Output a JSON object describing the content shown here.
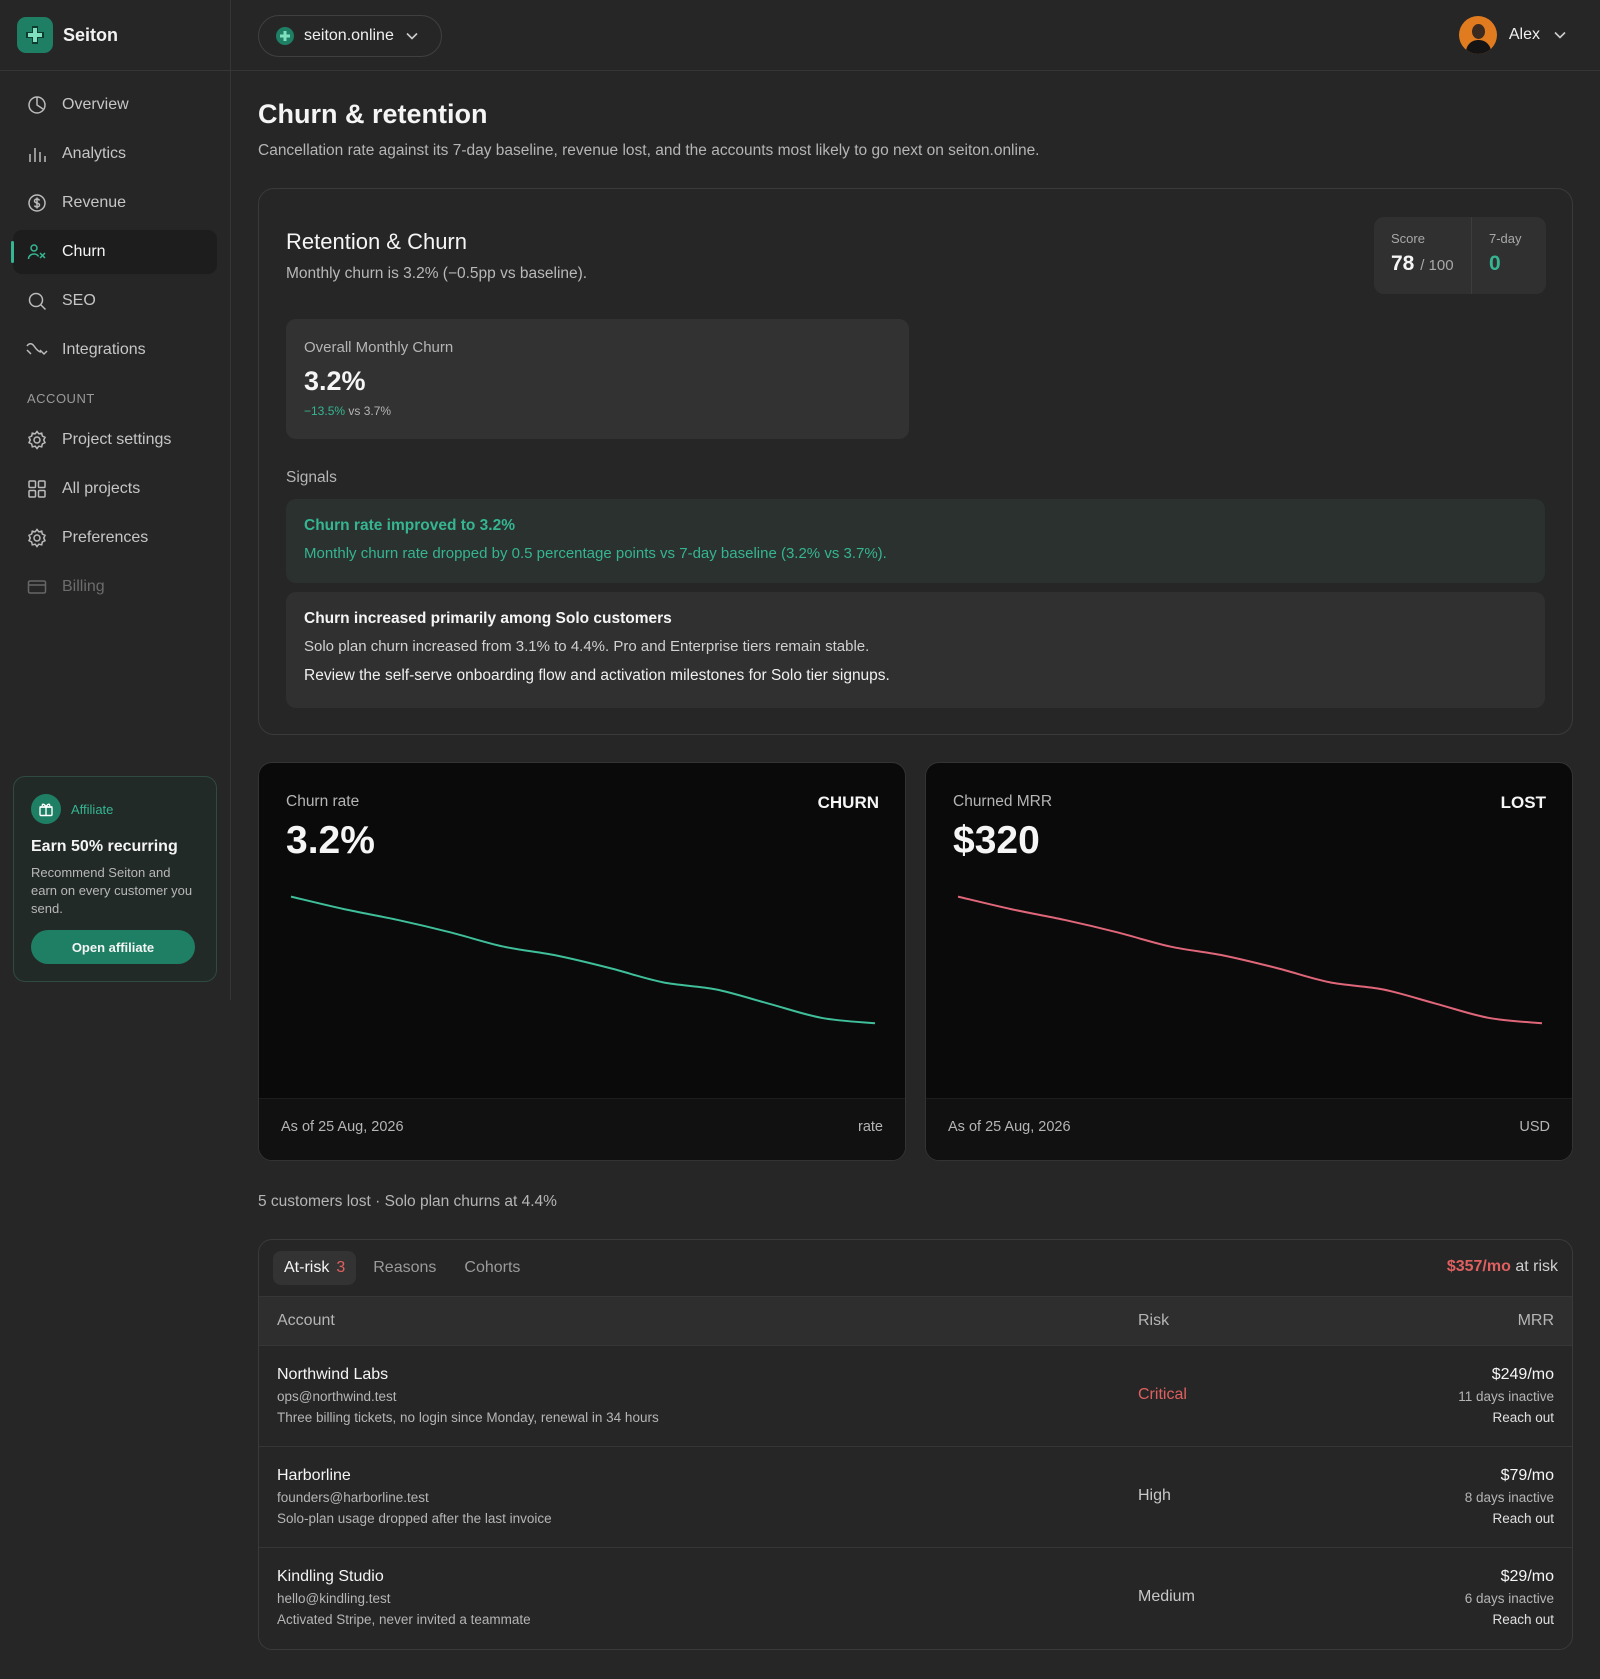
{
  "brand": {
    "name": "Seiton",
    "accent": "#1f7f64"
  },
  "sidebar": {
    "items": [
      {
        "label": "Overview",
        "icon": "overview-icon"
      },
      {
        "label": "Analytics",
        "icon": "analytics-icon"
      },
      {
        "label": "Revenue",
        "icon": "revenue-icon"
      },
      {
        "label": "Churn",
        "icon": "churn-icon",
        "active": true
      },
      {
        "label": "SEO",
        "icon": "search-icon"
      },
      {
        "label": "Integrations",
        "icon": "integrations-icon"
      }
    ],
    "section_label": "ACCOUNT",
    "account_items": [
      {
        "label": "Project settings",
        "icon": "gear-icon"
      },
      {
        "label": "All projects",
        "icon": "grid-icon"
      },
      {
        "label": "Preferences",
        "icon": "gear-icon"
      },
      {
        "label": "Billing",
        "icon": "card-icon",
        "muted": true
      }
    ],
    "affiliate": {
      "tag": "Affiliate",
      "title": "Earn 50% recurring",
      "description": "Recommend Seiton and earn on every customer you send.",
      "button": "Open affiliate"
    }
  },
  "topbar": {
    "project": "seiton.online",
    "user": "Alex"
  },
  "page": {
    "title": "Churn & retention",
    "subtitle": "Cancellation rate against its 7-day baseline, revenue lost, and the accounts most likely to go next on seiton.online."
  },
  "retention": {
    "title": "Retention & Churn",
    "subtitle": "Monthly churn is 3.2% (−0.5pp vs baseline).",
    "score_label": "Score",
    "score_value": "78",
    "score_max": "/ 100",
    "sevenday_label": "7-day",
    "sevenday_value": "0",
    "overall_label": "Overall Monthly Churn",
    "overall_value": "3.2%",
    "overall_delta": "−13.5%",
    "overall_compare": "vs 3.7%",
    "signals_label": "Signals",
    "signal_good_title": "Churn rate improved to 3.2%",
    "signal_good_text": "Monthly churn rate dropped by 0.5 percentage points vs 7-day baseline (3.2% vs 3.7%).",
    "signal_title": "Churn increased primarily among Solo customers",
    "signal_text": "Solo plan churn increased from 3.1% to 4.4%. Pro and Enterprise tiers remain stable.",
    "signal_action": "Review the self-serve onboarding flow and activation milestones for Solo tier signups."
  },
  "cards": {
    "churn": {
      "label": "Churn rate",
      "value": "3.2%",
      "tag": "CHURN",
      "asof": "As of 25 Aug, 2026",
      "unit": "rate",
      "color": "#3fbf9a"
    },
    "mrr": {
      "label": "Churned MRR",
      "value": "$320",
      "tag": "LOST",
      "asof": "As of 25 Aug, 2026",
      "unit": "USD",
      "color": "#e0677a"
    }
  },
  "chart_data": [
    {
      "type": "line",
      "series": [
        {
          "values": [
            100,
            93,
            87,
            80,
            72,
            67,
            60,
            52,
            48,
            40,
            32,
            29
          ]
        }
      ]
    },
    {
      "type": "line",
      "series": [
        {
          "values": [
            100,
            93,
            87,
            80,
            72,
            67,
            60,
            52,
            48,
            40,
            32,
            29
          ]
        }
      ]
    }
  ],
  "summary": "5 customers lost · Solo plan churns at 4.4%",
  "table": {
    "tabs": [
      {
        "label": "At-risk",
        "count": "3"
      },
      {
        "label": "Reasons"
      },
      {
        "label": "Cohorts"
      }
    ],
    "at_risk_amount": "$357/mo",
    "at_risk_suffix": "at risk",
    "headers": {
      "account": "Account",
      "risk": "Risk",
      "mrr": "MRR"
    },
    "rows": [
      {
        "name": "Northwind Labs",
        "email": "ops@northwind.test",
        "note": "Three billing tickets, no login since Monday, renewal in 34 hours",
        "risk": "Critical",
        "mrr": "$249/mo",
        "inactive": "11 days inactive",
        "action": "Reach out"
      },
      {
        "name": "Harborline",
        "email": "founders@harborline.test",
        "note": "Solo-plan usage dropped after the last invoice",
        "risk": "High",
        "mrr": "$79/mo",
        "inactive": "8 days inactive",
        "action": "Reach out"
      },
      {
        "name": "Kindling Studio",
        "email": "hello@kindling.test",
        "note": "Activated Stripe, never invited a teammate",
        "risk": "Medium",
        "mrr": "$29/mo",
        "inactive": "6 days inactive",
        "action": "Reach out"
      }
    ]
  }
}
